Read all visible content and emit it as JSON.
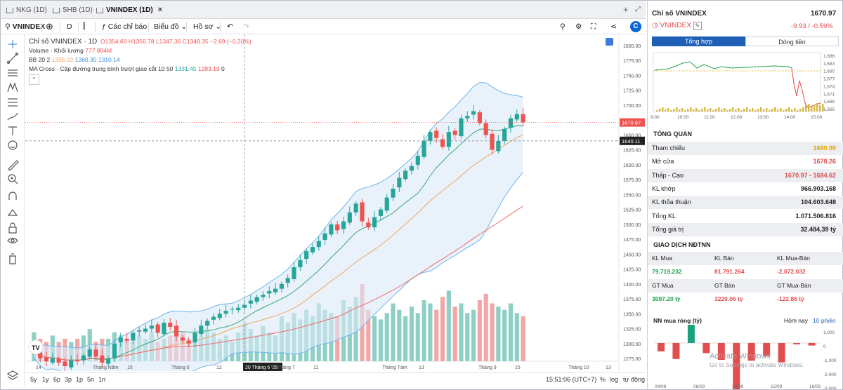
{
  "tabs": [
    {
      "label": "NKG (1D)",
      "active": false
    },
    {
      "label": "SHB (1D)",
      "active": false
    },
    {
      "label": "VNINDEX (1D)",
      "active": true
    }
  ],
  "toolbar": {
    "symbol": "VNINDEX",
    "interval": "D",
    "indicators_label": "Các chỉ báo",
    "chart_type_label": "Biểu đồ",
    "profile_label": "Hồ sơ"
  },
  "legend": {
    "title": "Chỉ số VNINDEX · 1D",
    "o": "O1354.69",
    "h": "H1356.78",
    "l": "L1347.36",
    "c": "C1349.35",
    "chg": "−2.69 (−0.20%)",
    "volume": "Volume - Khối lượng",
    "volume_val": "777.804M",
    "bb": "BB 20 2",
    "bb1": "1335.22",
    "bb2": "1360.30",
    "bb3": "1310.14",
    "ma": "MA Cross - Cặp đường trung bình trượt giao cắt 10 50",
    "ma1": "1331.45",
    "ma2": "1283.19",
    "ma3": "0"
  },
  "chart_data": {
    "type": "candlestick",
    "y_axis": {
      "min": 1275,
      "max": 1800,
      "ticks": [
        1800,
        1775,
        1750,
        1725,
        1700,
        1675,
        1650,
        1625,
        1600,
        1575,
        1550,
        1525,
        1500,
        1475,
        1450,
        1425,
        1400,
        1375,
        1350,
        1325,
        1300,
        1275
      ]
    },
    "x_ticks": [
      "14",
      "Tháng Năm",
      "15",
      "Tháng 6",
      "12",
      "20 Tháng 6 '25",
      "Tháng 7",
      "11",
      "Tháng Tám",
      "13",
      "Tháng 9",
      "15",
      "Tháng 10",
      "13"
    ],
    "last_price": 1670.97,
    "crosshair_price": 1640.11,
    "crosshair_date": "20 Tháng 6 '25",
    "closes": [
      1285,
      1275,
      1270,
      1275,
      1268,
      1262,
      1272,
      1270,
      1280,
      1290,
      1278,
      1268,
      1275,
      1300,
      1310,
      1305,
      1318,
      1322,
      1325,
      1330,
      1318,
      1335,
      1328,
      1312,
      1305,
      1300,
      1318,
      1330,
      1338,
      1345,
      1350,
      1355,
      1358,
      1360,
      1365,
      1372,
      1378,
      1382,
      1388,
      1392,
      1400,
      1410,
      1428,
      1440,
      1455,
      1462,
      1472,
      1485,
      1500,
      1490,
      1505,
      1520,
      1535,
      1505,
      1495,
      1512,
      1525,
      1545,
      1560,
      1578,
      1590,
      1598,
      1615,
      1640,
      1655,
      1645,
      1630,
      1655,
      1650,
      1678,
      1682,
      1690,
      1670,
      1650,
      1625,
      1640,
      1660,
      1678,
      1685,
      1671
    ],
    "volumes": [
      9,
      7,
      6,
      8,
      6,
      7,
      6,
      7,
      8,
      10,
      6,
      7,
      7,
      9,
      8,
      7,
      6,
      8,
      7,
      9,
      6,
      7,
      8,
      10,
      9,
      7,
      6,
      8,
      10,
      9,
      7,
      8,
      6,
      9,
      12,
      10,
      8,
      11,
      9,
      8,
      14,
      12,
      15,
      13,
      16,
      14,
      18,
      16,
      15,
      14,
      19,
      17,
      20,
      24,
      16,
      14,
      13,
      15,
      18,
      16,
      14,
      17,
      15,
      19,
      18,
      16,
      20,
      22,
      17,
      18,
      15,
      16,
      19,
      21,
      18,
      17,
      16,
      18,
      15,
      14
    ]
  },
  "bottombar": {
    "ranges": [
      "5y",
      "1y",
      "6p",
      "3p",
      "1p",
      "5n",
      "1n"
    ],
    "time": "15:51:06 (UTC+7)",
    "pct": "%",
    "log": "log",
    "auto": "tự động"
  },
  "panel": {
    "title": "Chỉ số VNINDEX",
    "price": "1670.97",
    "symbol": "VNINDEX",
    "change": "-9.93 / -0.59%",
    "tab1": "Tổng hợp",
    "tab2": "Dòng tiền",
    "intraday_times": [
      "9:00",
      "10:00",
      "11:00",
      "12:00",
      "13:00",
      "14:00",
      "15:00"
    ],
    "intraday_levels": [
      "1,686",
      "1,683",
      "1,680",
      "1,677",
      "1,674",
      "1,671",
      "1,668",
      "1,665"
    ],
    "overview_title": "TỔNG QUAN",
    "rows": [
      {
        "k": "Tham chiếu",
        "v": "1680.90",
        "color": "#e0a800"
      },
      {
        "k": "Mở cửa",
        "v": "1678.26",
        "color": "#e24d4d"
      },
      {
        "k": "Thấp - Cao",
        "v": "1670.97 - 1684.62",
        "color": "#e24d4d"
      },
      {
        "k": "KL khớp",
        "v": "966.903.168",
        "color": "#222"
      },
      {
        "k": "KL thỏa thuận",
        "v": "104.603.648",
        "color": "#222"
      },
      {
        "k": "Tổng KL",
        "v": "1.071.506.816",
        "color": "#222"
      },
      {
        "k": "Tổng giá trị",
        "v": "32.484,39 tỷ",
        "color": "#222"
      }
    ],
    "foreign_title": "GIAO DỊCH NĐTNN",
    "foreign_headers": [
      "KL Mua",
      "KL Bán",
      "KL Mua-Bán"
    ],
    "foreign_vals": [
      "79.719.232",
      "81.791.264",
      "-2.072.032"
    ],
    "foreign_headers2": [
      "GT Mua",
      "GT Bán",
      "GT Mua-Bán"
    ],
    "foreign_vals2": [
      "3097.20 tỷ",
      "3220.06 tỷ",
      "-122.86 tỷ"
    ],
    "net_title": "NN mua ròng (tỷ)",
    "net_today": "Hôm nay",
    "net_10": "10 phiên",
    "net_levels": [
      "1,000",
      "0",
      "-1,000",
      "-2,000",
      "-3,000"
    ],
    "net_dates": [
      "04/09",
      "08/09",
      "10/09",
      "12/09",
      "16/09"
    ],
    "net_values": [
      -500,
      -950,
      1100,
      -600,
      -1000,
      -2900,
      -1050,
      -800,
      -1150,
      -80,
      -150
    ],
    "watermark1": "Activate Windows",
    "watermark2": "Go to Settings to activate Windows."
  }
}
